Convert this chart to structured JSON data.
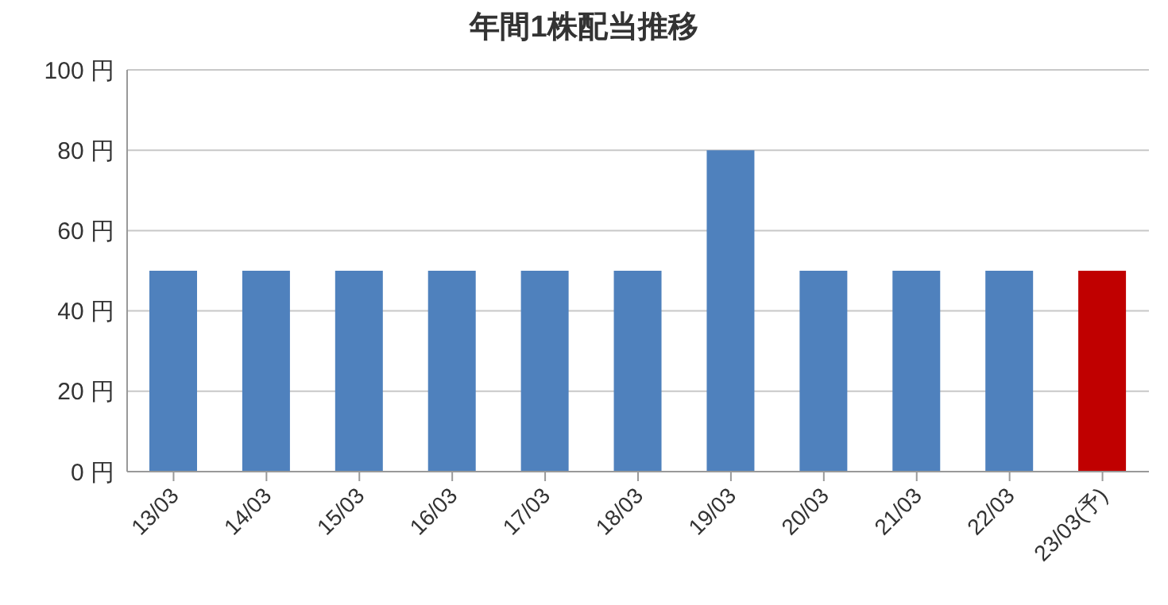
{
  "chart_data": {
    "type": "bar",
    "title": "年間1株配当推移",
    "categories": [
      "13/03",
      "14/03",
      "15/03",
      "16/03",
      "17/03",
      "18/03",
      "19/03",
      "20/03",
      "21/03",
      "22/03",
      "23/03(予)"
    ],
    "values": [
      50,
      50,
      50,
      50,
      50,
      50,
      80,
      50,
      50,
      50,
      50
    ],
    "colors": [
      "#4f81bd",
      "#4f81bd",
      "#4f81bd",
      "#4f81bd",
      "#4f81bd",
      "#4f81bd",
      "#4f81bd",
      "#4f81bd",
      "#4f81bd",
      "#4f81bd",
      "#c00000"
    ],
    "ylim": [
      0,
      100
    ],
    "yticks": [
      {
        "value": 0,
        "label": "0 円"
      },
      {
        "value": 20,
        "label": "20 円"
      },
      {
        "value": 40,
        "label": "40 円"
      },
      {
        "value": 60,
        "label": "60 円"
      },
      {
        "value": 80,
        "label": "80 円"
      },
      {
        "value": 100,
        "label": "100 円"
      }
    ],
    "grid": "y"
  }
}
